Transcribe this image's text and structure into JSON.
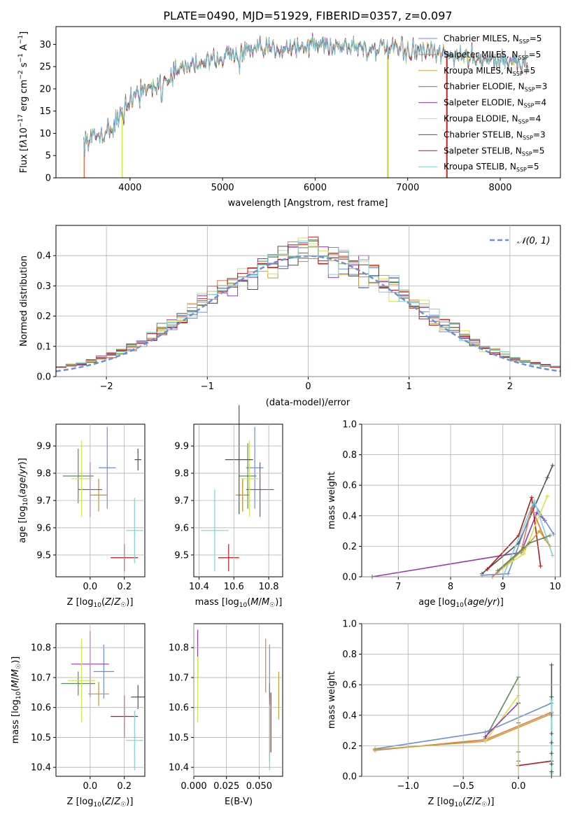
{
  "title": "PLATE=0490, MJD=51929, FIBERID=0357, z=0.097",
  "colors": {
    "Chabrier MILES": "#6a8fd6",
    "Salpeter MILES": "#e8754a",
    "Kroupa MILES": "#c8a032",
    "Chabrier ELODIE": "#5a8a5a",
    "Salpeter ELODIE": "#9a3ab0",
    "Kroupa ELODIE": "#d6e24a",
    "Chabrier STELIB": "#505050",
    "Salpeter STELIB": "#b81818",
    "Kroupa STELIB": "#7ad6d6"
  },
  "chart_data": [
    {
      "type": "line",
      "panel": "spectrum",
      "title": "PLATE=0490, MJD=51929, FIBERID=0357, z=0.097",
      "xlabel": "wavelength [Angstrom, rest frame]",
      "ylabel": "Flux [fλ10⁻¹⁷ erg cm⁻² s⁻¹ A⁻¹]",
      "xlim": [
        3200,
        8650
      ],
      "ylim": [
        0,
        34
      ],
      "xticks": [
        4000,
        5000,
        6000,
        7000,
        8000
      ],
      "yticks": [
        0,
        5,
        10,
        15,
        20,
        25,
        30
      ],
      "grid": false,
      "legend_position": "right",
      "legend": [
        "Chabrier MILES, N_SSP=5",
        "Salpeter MILES, N_SSP=5",
        "Kroupa MILES, N_SSP=5",
        "Chabrier ELODIE, N_SSP=3",
        "Salpeter ELODIE, N_SSP=4",
        "Kroupa ELODIE, N_SSP=4",
        "Chabrier STELIB, N_SSP=3",
        "Salpeter STELIB, N_SSP=5",
        "Kroupa STELIB, N_SSP=5"
      ],
      "continuum": [
        [
          3500,
          8
        ],
        [
          3800,
          11
        ],
        [
          4000,
          18.5
        ],
        [
          4300,
          21
        ],
        [
          4600,
          25
        ],
        [
          5000,
          27.5
        ],
        [
          5500,
          29
        ],
        [
          6000,
          30
        ],
        [
          6500,
          29.5
        ],
        [
          7000,
          28.5
        ],
        [
          7500,
          27.5
        ],
        [
          8000,
          26.5
        ],
        [
          8300,
          25.5
        ]
      ]
    },
    {
      "type": "line",
      "panel": "residuals",
      "xlabel": "(data-model)/error",
      "ylabel": "Normed distribution",
      "xlim": [
        -2.5,
        2.5
      ],
      "ylim": [
        0,
        0.5
      ],
      "xticks": [
        -2,
        -1,
        0,
        1,
        2
      ],
      "yticks": [
        0.0,
        0.1,
        0.2,
        0.3,
        0.4
      ],
      "grid": true,
      "legend": [
        "𝒩(0, 1)"
      ],
      "gaussian": {
        "mu": 0,
        "sigma": 1
      }
    },
    {
      "type": "scatter",
      "panel": "age_vs_Z",
      "xlabel": "Z [log10(Z/Z☉)]",
      "ylabel": "age  [log10(age/yr)]",
      "xlim": [
        -0.2,
        0.32
      ],
      "ylim": [
        9.42,
        9.98
      ],
      "xticks": [
        0.0,
        0.2
      ],
      "yticks": [
        9.5,
        9.6,
        9.7,
        9.8,
        9.9
      ],
      "series": [
        {
          "name": "Chabrier MILES",
          "x": 0.1,
          "y": 9.82
        },
        {
          "name": "Salpeter MILES",
          "x": 0.05,
          "y": 9.72
        },
        {
          "name": "Kroupa MILES",
          "x": 0.05,
          "y": 9.72
        },
        {
          "name": "Chabrier ELODIE",
          "x": -0.07,
          "y": 9.79
        },
        {
          "name": "Salpeter ELODIE",
          "x": 0.0,
          "y": 9.74
        },
        {
          "name": "Kroupa ELODIE",
          "x": -0.05,
          "y": 9.78
        },
        {
          "name": "Chabrier STELIB",
          "x": 0.28,
          "y": 9.85
        },
        {
          "name": "Salpeter STELIB",
          "x": 0.2,
          "y": 9.49
        },
        {
          "name": "Kroupa STELIB",
          "x": 0.26,
          "y": 9.59
        }
      ]
    },
    {
      "type": "scatter",
      "panel": "age_vs_mass",
      "xlabel": "mass [log10(M/M☉)]",
      "xlim": [
        10.37,
        10.88
      ],
      "ylim": [
        9.42,
        9.98
      ],
      "xticks": [
        10.4,
        10.6,
        10.8
      ],
      "yticks": [
        9.5,
        9.6,
        9.7,
        9.8,
        9.9
      ],
      "series": [
        {
          "name": "Chabrier MILES",
          "x": 10.72,
          "y": 9.82
        },
        {
          "name": "Salpeter MILES",
          "x": 10.65,
          "y": 9.72
        },
        {
          "name": "Kroupa MILES",
          "x": 10.65,
          "y": 9.72
        },
        {
          "name": "Chabrier ELODIE",
          "x": 10.68,
          "y": 9.79
        },
        {
          "name": "Salpeter ELODIE",
          "x": 10.75,
          "y": 9.74
        },
        {
          "name": "Kroupa ELODIE",
          "x": 10.69,
          "y": 9.78
        },
        {
          "name": "Chabrier STELIB",
          "x": 10.63,
          "y": 9.85
        },
        {
          "name": "Salpeter STELIB",
          "x": 10.57,
          "y": 9.49
        },
        {
          "name": "Kroupa STELIB",
          "x": 10.49,
          "y": 9.59
        }
      ]
    },
    {
      "type": "line",
      "panel": "mass_weight_vs_age",
      "xlabel": "age  [log10(age/yr)]",
      "ylabel": "mass weight",
      "xlim": [
        6.3,
        10.1
      ],
      "ylim": [
        0,
        1
      ],
      "xticks": [
        7,
        8,
        9,
        10
      ],
      "yticks": [
        0.0,
        0.2,
        0.4,
        0.6,
        0.8,
        1.0
      ],
      "grid": true
    },
    {
      "type": "scatter",
      "panel": "mass_vs_Z",
      "xlabel": "Z [log10(Z/Z☉)]",
      "ylabel": "mass [log10(M/M☉)]",
      "xlim": [
        -0.2,
        0.32
      ],
      "ylim": [
        10.37,
        10.88
      ],
      "xticks": [
        0.0,
        0.2
      ],
      "yticks": [
        10.4,
        10.5,
        10.6,
        10.7,
        10.8
      ]
    },
    {
      "type": "scatter",
      "panel": "mass_vs_ebv",
      "xlabel": "E(B-V)",
      "xlim": [
        0.0,
        0.068
      ],
      "ylim": [
        10.37,
        10.88
      ],
      "xticks": [
        0.0,
        0.025,
        0.05
      ],
      "yticks": [
        10.4,
        10.5,
        10.6,
        10.7,
        10.8
      ]
    },
    {
      "type": "line",
      "panel": "mass_weight_vs_Z",
      "xlabel": "Z [log10(Z/Z☉)]",
      "ylabel": "mass weight",
      "xlim": [
        -1.42,
        0.38
      ],
      "ylim": [
        0,
        1
      ],
      "xticks": [
        -1.0,
        -0.5,
        0.0
      ],
      "yticks": [
        0.0,
        0.2,
        0.4,
        0.6,
        0.8,
        1.0
      ],
      "grid": true
    }
  ]
}
